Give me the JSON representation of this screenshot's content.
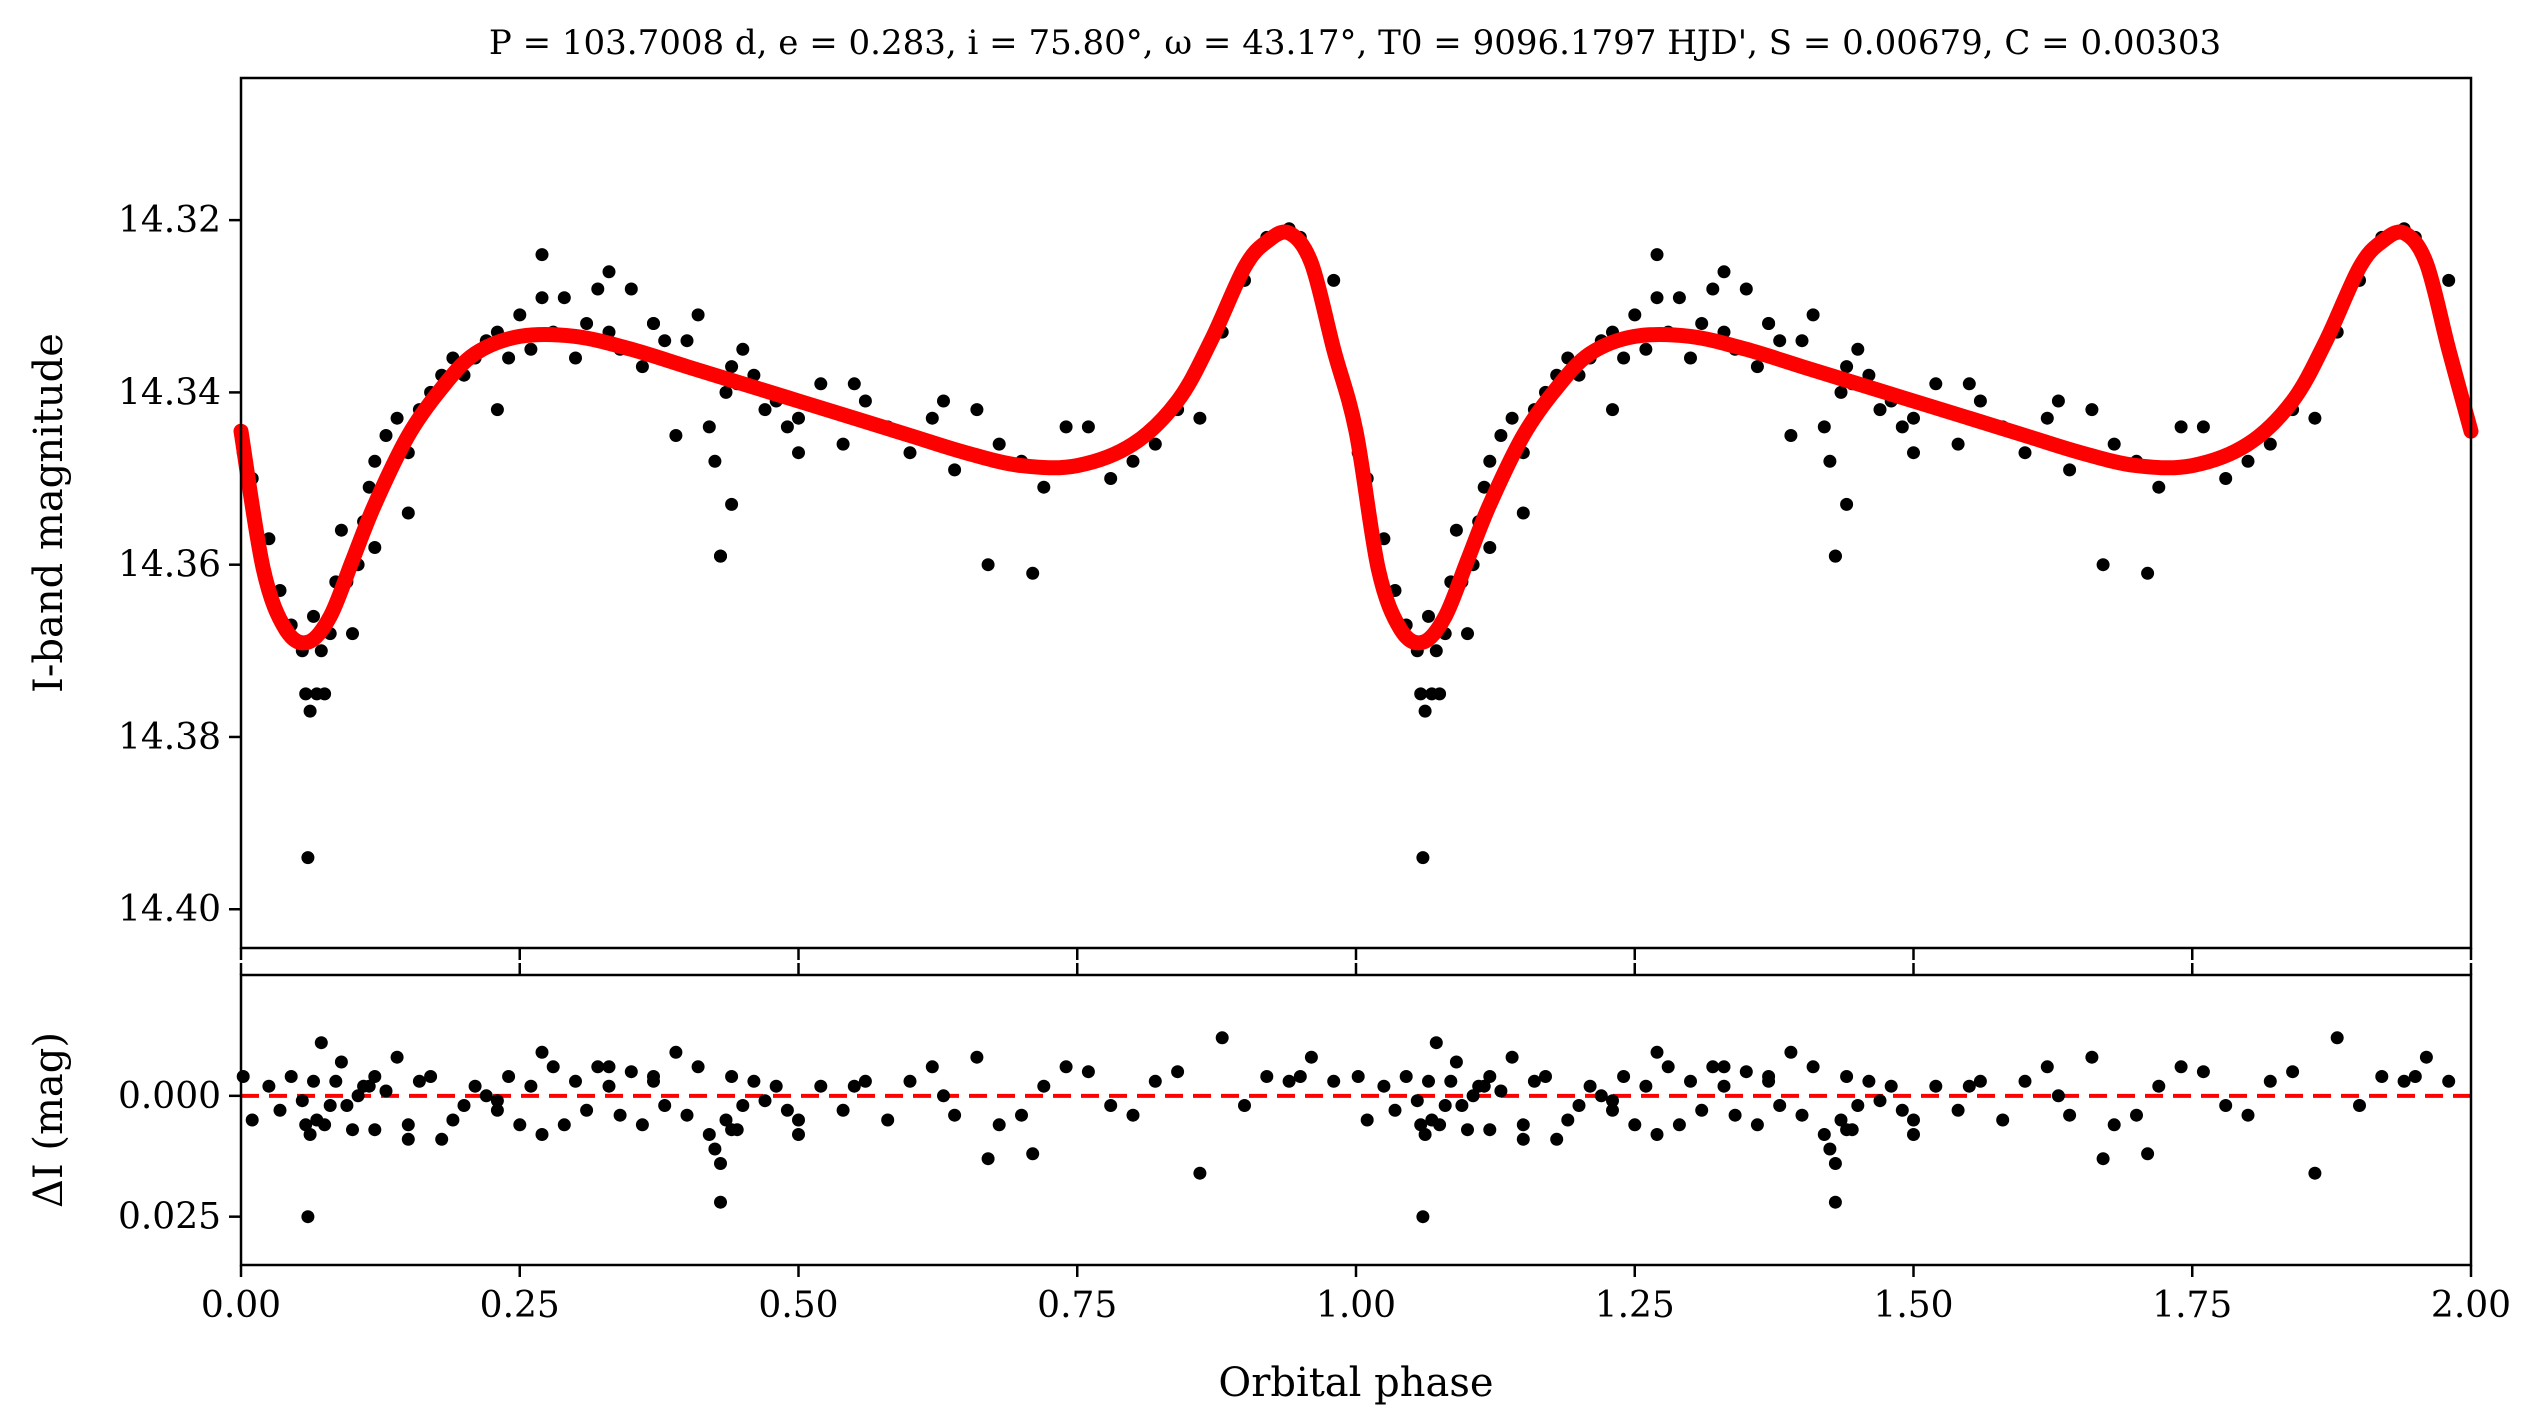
{
  "chart_data": [
    {
      "type": "scatter",
      "panel": "top",
      "title": "P = 103.7008 d, e = 0.283, i = 75.80°, ω = 43.17°, T0 = 9096.1797 HJD', S = 0.00679, C = 0.00303",
      "xlabel": "",
      "ylabel": "I-band magnitude",
      "xlim": [
        0,
        2
      ],
      "ylim": [
        14.4045,
        14.3035
      ],
      "y_inverted": true,
      "yticks": [
        14.32,
        14.34,
        14.36,
        14.38,
        14.4
      ],
      "ytick_labels": [
        "14.32",
        "14.34",
        "14.36",
        "14.38",
        "14.40"
      ],
      "grid": false,
      "series": [
        {
          "kind": "points",
          "color": "#000000",
          "x": [
            0.002,
            0.01,
            0.025,
            0.035,
            0.045,
            0.055,
            0.058,
            0.062,
            0.065,
            0.068,
            0.072,
            0.075,
            0.08,
            0.085,
            0.09,
            0.095,
            0.1,
            0.105,
            0.11,
            0.115,
            0.12,
            0.13,
            0.14,
            0.15,
            0.16,
            0.17,
            0.18,
            0.19,
            0.2,
            0.21,
            0.22,
            0.23,
            0.24,
            0.25,
            0.26,
            0.27,
            0.28,
            0.29,
            0.3,
            0.31,
            0.32,
            0.33,
            0.34,
            0.35,
            0.36,
            0.37,
            0.38,
            0.39,
            0.4,
            0.41,
            0.42,
            0.425,
            0.43,
            0.435,
            0.44,
            0.445,
            0.45,
            0.46,
            0.47,
            0.48,
            0.49,
            0.5,
            0.52,
            0.54,
            0.56,
            0.58,
            0.6,
            0.62,
            0.64,
            0.66,
            0.68,
            0.7,
            0.72,
            0.74,
            0.76,
            0.78,
            0.8,
            0.82,
            0.84,
            0.86,
            0.88,
            0.9,
            0.92,
            0.94,
            0.95,
            0.96,
            0.98,
            0.06,
            0.43,
            0.15,
            0.33,
            0.37,
            0.55,
            0.63,
            0.67,
            0.71,
            0.27,
            0.23,
            0.12,
            0.5,
            0.44
          ],
          "y": [
            14.347,
            14.35,
            14.357,
            14.363,
            14.367,
            14.37,
            14.375,
            14.377,
            14.366,
            14.375,
            14.37,
            14.375,
            14.368,
            14.362,
            14.356,
            14.362,
            14.368,
            14.36,
            14.355,
            14.351,
            14.348,
            14.345,
            14.343,
            14.347,
            14.342,
            14.34,
            14.338,
            14.336,
            14.338,
            14.336,
            14.334,
            14.333,
            14.336,
            14.331,
            14.335,
            14.329,
            14.333,
            14.329,
            14.336,
            14.332,
            14.328,
            14.333,
            14.335,
            14.328,
            14.337,
            14.332,
            14.334,
            14.345,
            14.334,
            14.331,
            14.344,
            14.348,
            14.359,
            14.34,
            14.337,
            14.339,
            14.335,
            14.338,
            14.342,
            14.341,
            14.344,
            14.343,
            14.339,
            14.346,
            14.341,
            14.344,
            14.347,
            14.343,
            14.349,
            14.342,
            14.346,
            14.348,
            14.351,
            14.344,
            14.344,
            14.35,
            14.348,
            14.346,
            14.342,
            14.343,
            14.333,
            14.327,
            14.322,
            14.321,
            14.322,
            14.325,
            14.327,
            14.394,
            14.359,
            14.354,
            14.326,
            14.332,
            14.339,
            14.341,
            14.36,
            14.361,
            14.324,
            14.342,
            14.358,
            14.347,
            14.353
          ],
          "mirror_period": 1
        },
        {
          "kind": "line",
          "name": "",
          "color": "#ff0000",
          "model": {
            "P_days": 103.7008,
            "e": 0.283,
            "i_deg": 75.8,
            "omega_deg": 43.17,
            "T0": 9096.1797,
            "S": 0.00679,
            "C": 0.00303,
            "curve_phase": [
              0,
              0.02,
              0.04,
              0.06,
              0.08,
              0.1,
              0.12,
              0.15,
              0.18,
              0.21,
              0.25,
              0.3,
              0.35,
              0.4,
              0.45,
              0.5,
              0.55,
              0.6,
              0.65,
              0.7,
              0.75,
              0.8,
              0.84,
              0.87,
              0.9,
              0.92,
              0.94,
              0.96,
              0.98,
              1.0
            ],
            "curve_mag": [
              14.3445,
              14.3605,
              14.3675,
              14.369,
              14.366,
              14.3595,
              14.353,
              14.345,
              14.3395,
              14.3355,
              14.3335,
              14.3335,
              14.335,
              14.337,
              14.339,
              14.341,
              14.343,
              14.345,
              14.347,
              14.3485,
              14.3485,
              14.346,
              14.341,
              14.334,
              14.3255,
              14.3225,
              14.3215,
              14.325,
              14.335,
              14.3445
            ]
          }
        }
      ]
    },
    {
      "type": "scatter",
      "panel": "bottom",
      "xlabel": "Orbital phase",
      "ylabel": "ΔI (mag)",
      "xlim": [
        0,
        2
      ],
      "ylim": [
        0.035,
        -0.025
      ],
      "y_inverted": true,
      "xticks": [
        0,
        0.25,
        0.5,
        0.75,
        1.0,
        1.25,
        1.5,
        1.75,
        2.0
      ],
      "xtick_labels": [
        "0.00",
        "0.25",
        "0.50",
        "0.75",
        "1.00",
        "1.25",
        "1.50",
        "1.75",
        "2.00"
      ],
      "yticks": [
        0.0,
        0.025
      ],
      "ytick_labels": [
        "0.000",
        "0.025"
      ],
      "grid": false,
      "series": [
        {
          "kind": "points",
          "color": "#000000",
          "x": [
            0.002,
            0.01,
            0.025,
            0.035,
            0.045,
            0.055,
            0.058,
            0.062,
            0.065,
            0.068,
            0.072,
            0.075,
            0.08,
            0.085,
            0.09,
            0.095,
            0.1,
            0.105,
            0.11,
            0.115,
            0.12,
            0.13,
            0.14,
            0.15,
            0.16,
            0.17,
            0.18,
            0.19,
            0.2,
            0.21,
            0.22,
            0.23,
            0.24,
            0.25,
            0.26,
            0.27,
            0.28,
            0.29,
            0.3,
            0.31,
            0.32,
            0.33,
            0.34,
            0.35,
            0.36,
            0.37,
            0.38,
            0.39,
            0.4,
            0.41,
            0.42,
            0.425,
            0.43,
            0.435,
            0.44,
            0.445,
            0.45,
            0.46,
            0.47,
            0.48,
            0.49,
            0.5,
            0.52,
            0.54,
            0.56,
            0.58,
            0.6,
            0.62,
            0.64,
            0.66,
            0.68,
            0.7,
            0.72,
            0.74,
            0.76,
            0.78,
            0.8,
            0.82,
            0.84,
            0.86,
            0.88,
            0.9,
            0.92,
            0.94,
            0.95,
            0.96,
            0.98,
            0.06,
            0.43,
            0.15,
            0.33,
            0.37,
            0.55,
            0.63,
            0.67,
            0.71,
            0.27,
            0.23,
            0.12,
            0.5,
            0.44
          ],
          "y": [
            -0.004,
            0.005,
            -0.002,
            0.003,
            -0.004,
            0.001,
            0.006,
            0.008,
            -0.003,
            0.005,
            -0.011,
            0.006,
            0.002,
            -0.003,
            -0.007,
            0.002,
            0.007,
            0.0,
            -0.002,
            -0.002,
            -0.004,
            -0.001,
            -0.008,
            0.006,
            -0.003,
            -0.004,
            0.009,
            0.005,
            0.002,
            -0.002,
            0.0,
            0.003,
            -0.004,
            0.006,
            -0.002,
            0.008,
            -0.006,
            0.006,
            -0.003,
            0.003,
            -0.006,
            -0.002,
            0.004,
            -0.005,
            0.006,
            -0.003,
            0.002,
            -0.009,
            0.004,
            -0.006,
            0.008,
            0.011,
            0.022,
            0.005,
            -0.004,
            0.007,
            0.002,
            -0.003,
            0.001,
            -0.002,
            0.003,
            0.005,
            -0.002,
            0.003,
            -0.003,
            0.005,
            -0.003,
            -0.006,
            0.004,
            -0.008,
            0.006,
            0.004,
            -0.002,
            -0.006,
            -0.005,
            0.002,
            0.004,
            -0.003,
            -0.005,
            0.016,
            -0.012,
            0.002,
            -0.004,
            -0.003,
            -0.004,
            -0.008,
            -0.003,
            0.025,
            0.014,
            0.009,
            -0.006,
            -0.004,
            -0.002,
            0.0,
            0.013,
            0.012,
            -0.009,
            0.001,
            0.007,
            0.008,
            0.007
          ],
          "mirror_period": 1
        },
        {
          "kind": "hline",
          "y": 0.0,
          "style": "dashed",
          "color": "#ff0000"
        }
      ]
    }
  ]
}
